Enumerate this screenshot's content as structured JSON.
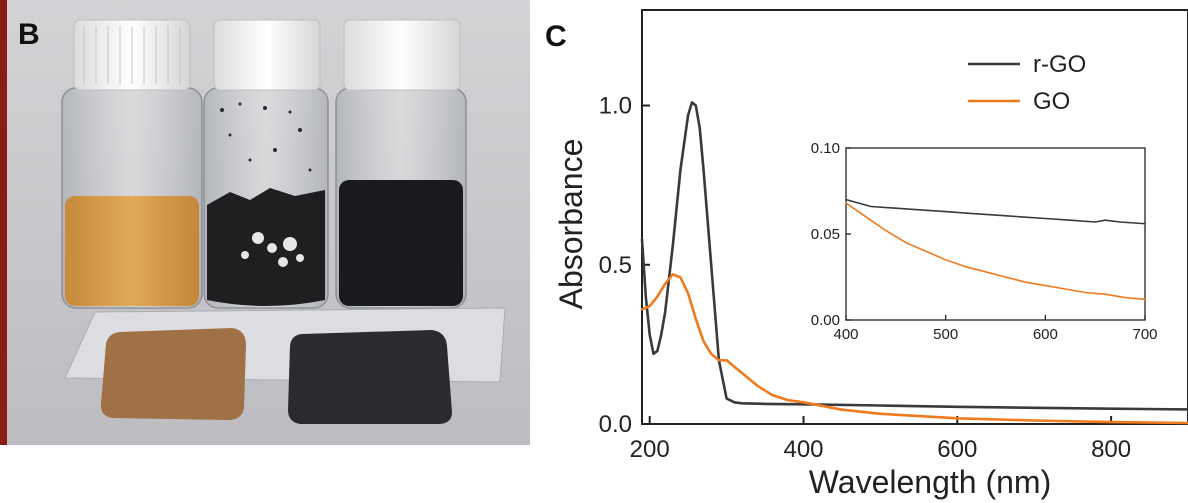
{
  "panels": {
    "left_label": "B",
    "right_label": "C"
  },
  "colors": {
    "rgo": "#3a3a3a",
    "go": "#f07a1e",
    "photo_background": "#c9c9cc",
    "edge_strip": "#8a1c16"
  },
  "chart_data": [
    {
      "type": "line",
      "title": "",
      "xlabel": "Wavelength (nm)",
      "ylabel": "Absorbance",
      "xlim": [
        190,
        900
      ],
      "ylim": [
        0,
        1.3
      ],
      "xticks": [
        "200",
        "400",
        "600",
        "800"
      ],
      "yticks": [
        "0.0",
        "0.5",
        "1.0"
      ],
      "legend_position": "top-right",
      "grid": false,
      "series": [
        {
          "name": "r-GO",
          "x": [
            190,
            195,
            200,
            205,
            210,
            215,
            220,
            230,
            240,
            250,
            255,
            260,
            265,
            270,
            280,
            290,
            300,
            310,
            320,
            350,
            400,
            500,
            600,
            700,
            800,
            900
          ],
          "y": [
            0.58,
            0.4,
            0.28,
            0.22,
            0.23,
            0.28,
            0.35,
            0.56,
            0.8,
            0.97,
            1.01,
            1.0,
            0.93,
            0.8,
            0.5,
            0.2,
            0.08,
            0.068,
            0.065,
            0.063,
            0.062,
            0.058,
            0.054,
            0.051,
            0.048,
            0.046
          ]
        },
        {
          "name": "GO",
          "x": [
            190,
            200,
            210,
            220,
            230,
            240,
            250,
            260,
            270,
            280,
            290,
            300,
            310,
            320,
            340,
            360,
            380,
            400,
            450,
            500,
            600,
            700,
            800,
            900
          ],
          "y": [
            0.36,
            0.37,
            0.4,
            0.44,
            0.47,
            0.46,
            0.41,
            0.33,
            0.26,
            0.22,
            0.2,
            0.2,
            0.18,
            0.16,
            0.12,
            0.09,
            0.075,
            0.068,
            0.045,
            0.032,
            0.018,
            0.011,
            0.006,
            0.003
          ]
        }
      ]
    },
    {
      "type": "line",
      "title": "",
      "xlabel": "",
      "ylabel": "",
      "xlim": [
        400,
        700
      ],
      "ylim": [
        0,
        0.1
      ],
      "xticks": [
        "400",
        "500",
        "600",
        "700"
      ],
      "yticks": [
        "0.00",
        "0.05",
        "0.10"
      ],
      "grid": false,
      "series": [
        {
          "x": [
            400,
            425,
            450,
            475,
            500,
            525,
            550,
            575,
            600,
            625,
            650,
            660,
            675,
            700
          ],
          "y": [
            0.07,
            0.066,
            0.065,
            0.064,
            0.063,
            0.062,
            0.061,
            0.06,
            0.059,
            0.058,
            0.057,
            0.058,
            0.057,
            0.056
          ]
        },
        {
          "x": [
            400,
            420,
            440,
            460,
            480,
            500,
            520,
            540,
            560,
            580,
            600,
            620,
            640,
            660,
            680,
            700
          ],
          "y": [
            0.068,
            0.06,
            0.052,
            0.045,
            0.04,
            0.035,
            0.031,
            0.028,
            0.025,
            0.022,
            0.02,
            0.018,
            0.016,
            0.015,
            0.013,
            0.012
          ]
        }
      ]
    }
  ]
}
